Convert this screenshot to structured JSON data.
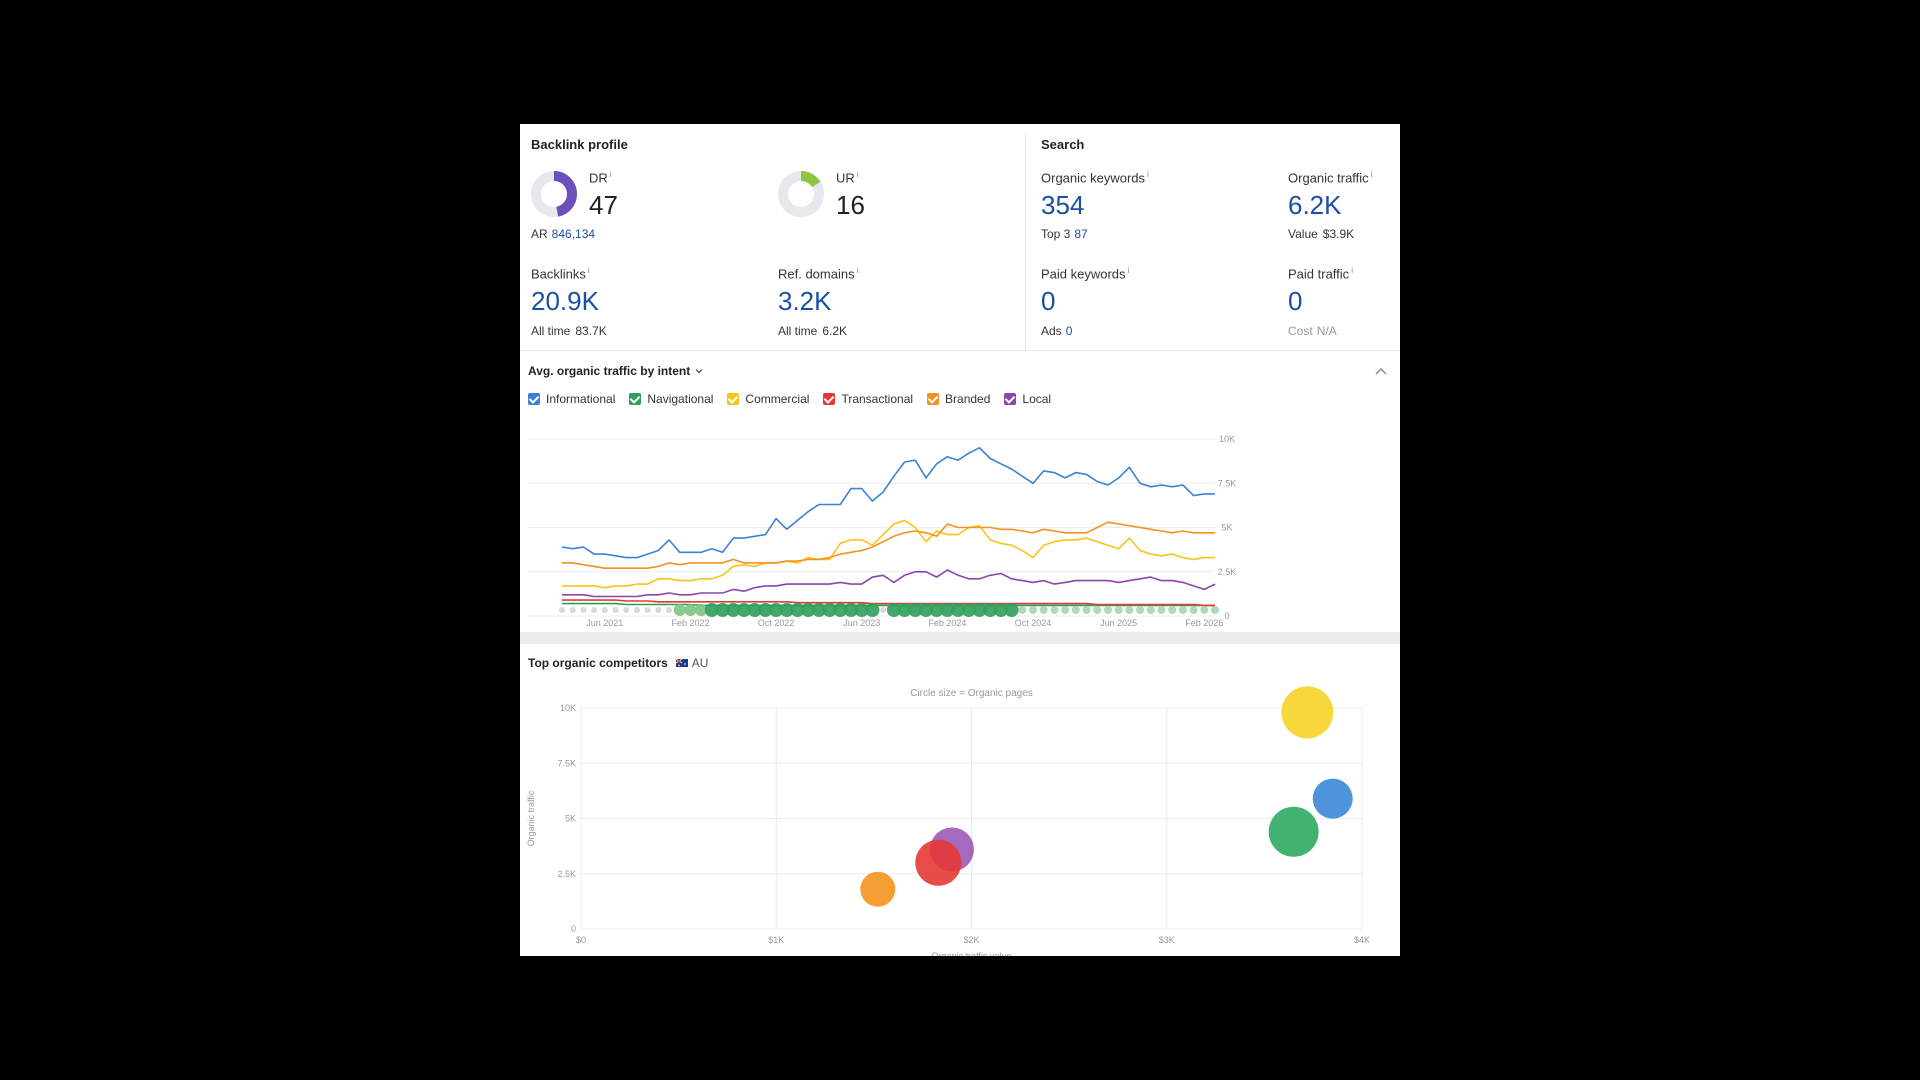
{
  "backlink": {
    "title": "Backlink profile",
    "dr": {
      "label": "DR",
      "value": "47",
      "fill_fraction": 0.47,
      "color": "#6b4fbb"
    },
    "ar_label": "AR",
    "ar_value": "846,134",
    "ur": {
      "label": "UR",
      "value": "16",
      "fill_fraction": 0.16,
      "color": "#8cc63f"
    },
    "backlinks": {
      "label": "Backlinks",
      "value": "20.9K",
      "sub_label": "All time",
      "sub_value": "83.7K"
    },
    "ref_domains": {
      "label": "Ref. domains",
      "value": "3.2K",
      "sub_label": "All time",
      "sub_value": "6.2K"
    }
  },
  "search": {
    "title": "Search",
    "organic_keywords": {
      "label": "Organic keywords",
      "value": "354",
      "sub_label": "Top 3",
      "sub_value": "87"
    },
    "organic_traffic": {
      "label": "Organic traffic",
      "value": "6.2K",
      "sub_label": "Value",
      "sub_value": "$3.9K"
    },
    "paid_keywords": {
      "label": "Paid keywords",
      "value": "0",
      "sub_label": "Ads",
      "sub_value": "0"
    },
    "paid_traffic": {
      "label": "Paid traffic",
      "value": "0",
      "sub_label": "Cost",
      "sub_value": "N/A"
    }
  },
  "info_glyph": "i",
  "intent": {
    "title": "Avg. organic traffic by intent",
    "legend": [
      {
        "label": "Informational",
        "color": "#3b82d6"
      },
      {
        "label": "Navigational",
        "color": "#2e9e5b"
      },
      {
        "label": "Commercial",
        "color": "#f5c518"
      },
      {
        "label": "Transactional",
        "color": "#e53935"
      },
      {
        "label": "Branded",
        "color": "#f5921e"
      },
      {
        "label": "Local",
        "color": "#8e44ad"
      }
    ]
  },
  "competitors": {
    "title": "Top organic competitors",
    "country": "AU",
    "caption": "Circle size = Organic pages",
    "ylabel": "Organic traffic",
    "xlabel": "Organic traffic value"
  },
  "chart_data": [
    {
      "type": "line",
      "x_ticks": [
        "Jun 2021",
        "Feb 2022",
        "Oct 2022",
        "Jun 2023",
        "Feb 2024",
        "Oct 2024",
        "Jun 2025",
        "Feb 2026"
      ],
      "y_ticks": [
        "10K",
        "7.5K",
        "5K",
        "2.5K",
        "0"
      ],
      "ylim": [
        0,
        10000
      ],
      "x": [
        "2021-02",
        "2021-03",
        "2021-04",
        "2021-05",
        "2021-06",
        "2021-07",
        "2021-08",
        "2021-09",
        "2021-10",
        "2021-11",
        "2021-12",
        "2022-01",
        "2022-02",
        "2022-03",
        "2022-04",
        "2022-05",
        "2022-06",
        "2022-07",
        "2022-08",
        "2022-09",
        "2022-10",
        "2022-11",
        "2022-12",
        "2023-01",
        "2023-02",
        "2023-03",
        "2023-04",
        "2023-05",
        "2023-06",
        "2023-07",
        "2023-08",
        "2023-09",
        "2023-10",
        "2023-11",
        "2023-12",
        "2024-01",
        "2024-02",
        "2024-03",
        "2024-04",
        "2024-05",
        "2024-06",
        "2024-07",
        "2024-08",
        "2024-09",
        "2024-10",
        "2024-11",
        "2024-12",
        "2025-01",
        "2025-02",
        "2025-03",
        "2025-04",
        "2025-05",
        "2025-06",
        "2025-07",
        "2025-08",
        "2025-09",
        "2025-10",
        "2025-11",
        "2025-12",
        "2026-01",
        "2026-02",
        "2026-03"
      ],
      "series": [
        {
          "name": "Informational",
          "color": "#3b82d6",
          "values": [
            3900,
            3800,
            3900,
            3500,
            3500,
            3400,
            3300,
            3300,
            3500,
            3700,
            4300,
            3600,
            3600,
            3600,
            3800,
            3600,
            4400,
            4400,
            4500,
            4600,
            5500,
            4900,
            5400,
            5900,
            6300,
            6300,
            6300,
            7200,
            7200,
            6500,
            7000,
            7900,
            8700,
            8800,
            7800,
            8600,
            9000,
            8800,
            9200,
            9500,
            8900,
            8600,
            8300,
            7900,
            7500,
            8200,
            8100,
            7800,
            8100,
            8000,
            7600,
            7400,
            7800,
            8400,
            7500,
            7300,
            7400,
            7300,
            7400,
            6800,
            6900,
            6900
          ]
        },
        {
          "name": "Navigational",
          "color": "#2e9e5b",
          "values": [
            700,
            700,
            700,
            700,
            700,
            700,
            650,
            650,
            650,
            650,
            650,
            650,
            650,
            600,
            600,
            600,
            600,
            600,
            600,
            600,
            600,
            600,
            600,
            600,
            600,
            600,
            600,
            600,
            600,
            600,
            600,
            600,
            600,
            600,
            600,
            600,
            600,
            600,
            600,
            600,
            600,
            600,
            600,
            600,
            600,
            600,
            600,
            600,
            600,
            600,
            600,
            600,
            600,
            600,
            600,
            600,
            600,
            600,
            600,
            600,
            600,
            600
          ]
        },
        {
          "name": "Commercial",
          "color": "#f5c518",
          "values": [
            1700,
            1700,
            1700,
            1700,
            1600,
            1700,
            1700,
            1800,
            1800,
            2100,
            2100,
            2000,
            2000,
            2100,
            2100,
            2300,
            2800,
            2900,
            2800,
            3000,
            3000,
            3100,
            3000,
            3300,
            3200,
            3200,
            4100,
            4300,
            4300,
            4000,
            4600,
            5200,
            5400,
            5000,
            4200,
            4800,
            4600,
            4600,
            5000,
            5100,
            4300,
            4100,
            4000,
            3700,
            3300,
            4000,
            4200,
            4300,
            4300,
            4400,
            4200,
            4000,
            3800,
            4400,
            3700,
            3500,
            3400,
            3500,
            3300,
            3200,
            3300,
            3300
          ]
        },
        {
          "name": "Transactional",
          "color": "#e53935",
          "values": [
            900,
            900,
            900,
            900,
            900,
            900,
            850,
            850,
            850,
            800,
            800,
            800,
            800,
            800,
            800,
            800,
            800,
            800,
            800,
            800,
            800,
            800,
            750,
            750,
            750,
            750,
            750,
            750,
            750,
            700,
            700,
            700,
            700,
            700,
            700,
            700,
            700,
            700,
            700,
            700,
            700,
            700,
            700,
            700,
            700,
            700,
            700,
            700,
            700,
            700,
            650,
            650,
            650,
            650,
            650,
            650,
            650,
            650,
            650,
            650,
            600,
            600
          ]
        },
        {
          "name": "Branded",
          "color": "#f5921e",
          "values": [
            3000,
            3000,
            2900,
            2800,
            2700,
            2700,
            2700,
            2700,
            2700,
            2800,
            3000,
            2900,
            3000,
            3000,
            3000,
            3000,
            3200,
            3000,
            3000,
            3000,
            3000,
            3100,
            3100,
            3200,
            3200,
            3300,
            3500,
            3600,
            3700,
            3900,
            4200,
            4500,
            4700,
            4800,
            4700,
            4500,
            5200,
            5000,
            5000,
            5000,
            5000,
            4900,
            4900,
            4800,
            4700,
            4900,
            4800,
            4700,
            4700,
            4700,
            5000,
            5300,
            5200,
            5100,
            5000,
            4900,
            4800,
            4700,
            4800,
            4700,
            4700,
            4700
          ]
        },
        {
          "name": "Local",
          "color": "#8e44ad",
          "values": [
            1200,
            1200,
            1200,
            1100,
            1100,
            1100,
            1100,
            1100,
            1200,
            1200,
            1300,
            1200,
            1200,
            1300,
            1300,
            1300,
            1500,
            1400,
            1600,
            1700,
            1700,
            1800,
            1800,
            1800,
            1800,
            1800,
            1900,
            1800,
            1800,
            2200,
            2300,
            1900,
            2300,
            2500,
            2500,
            2200,
            2600,
            2300,
            2100,
            2100,
            2300,
            2400,
            2100,
            2000,
            1900,
            2000,
            1800,
            1900,
            2000,
            2000,
            2000,
            2000,
            1900,
            2000,
            2100,
            2200,
            2000,
            2000,
            1900,
            1700,
            1500,
            1800
          ]
        }
      ]
    },
    {
      "type": "scatter",
      "x_ticks": [
        "$0",
        "$1K",
        "$2K",
        "$3K",
        "$4K"
      ],
      "y_ticks": [
        "10K",
        "7.5K",
        "5K",
        "2.5K",
        "0"
      ],
      "xlim": [
        0,
        4000
      ],
      "ylim": [
        0,
        10000
      ],
      "points": [
        {
          "x": 3720,
          "y": 9800,
          "size": 44,
          "color": "#f5d327"
        },
        {
          "x": 3850,
          "y": 5900,
          "size": 32,
          "color": "#3b88d6"
        },
        {
          "x": 3650,
          "y": 4400,
          "size": 42,
          "color": "#2eaa5e"
        },
        {
          "x": 1900,
          "y": 3600,
          "size": 36,
          "color": "#9b59b6"
        },
        {
          "x": 1830,
          "y": 3000,
          "size": 38,
          "color": "#e53935"
        },
        {
          "x": 1520,
          "y": 1800,
          "size": 27,
          "color": "#f5921e"
        }
      ]
    }
  ]
}
